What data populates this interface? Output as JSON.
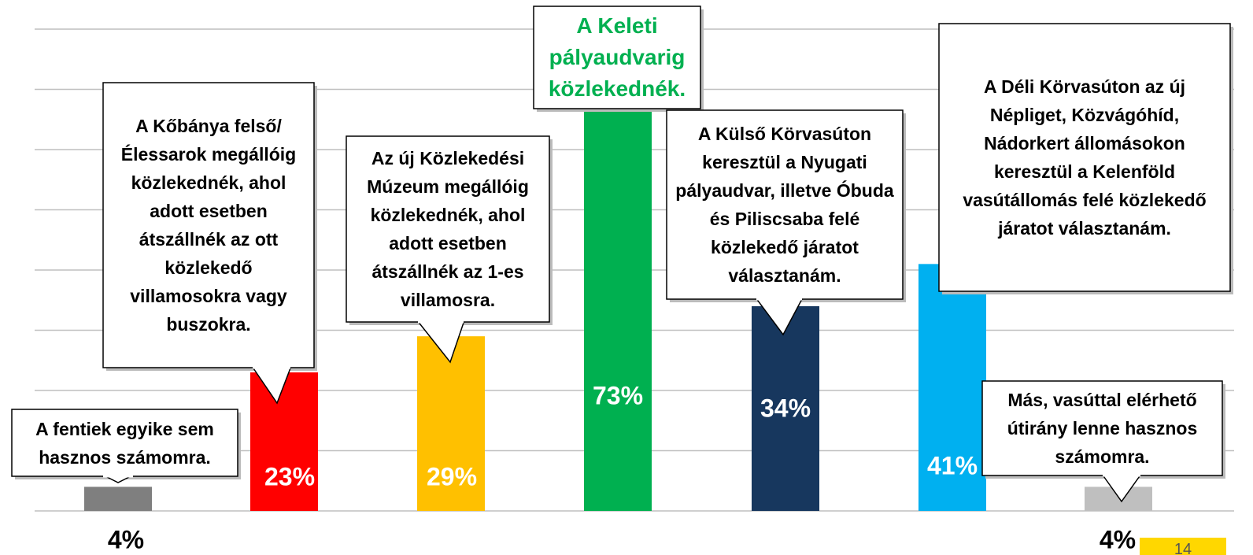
{
  "chart_data": {
    "type": "bar",
    "categories": [
      "A fentiek egyike sem hasznos számomra.",
      "A Kőbánya felső/Élessarok megállóig közlekednék, ahol adott esetben átszállnék az ott közlekedő villamosokra vagy buszokra.",
      "Az új Közlekedési Múzeum megállóig közlekednék, ahol adott esetben átszállnék az 1-es villamosra.",
      "A Keleti pályaudvarig közlekednék.",
      "A Külső Körvasúton keresztül a Nyugati pályaudvar, illetve Óbuda és Piliscsaba felé közlekedő járatot választanám.",
      "A Déli Körvasúton az új Népliget, Közvágóhíd, Nádorkert állomásokon keresztül a Kelenföld vasútállomás felé közlekedő járatot választanám.",
      "Más, vasúttal elérhető útirány lenne hasznos számomra."
    ],
    "values": [
      4,
      23,
      29,
      73,
      34,
      41,
      4
    ],
    "value_labels": [
      "4%",
      "23%",
      "29%",
      "73%",
      "34%",
      "41%",
      "4%"
    ],
    "colors": [
      "#7f7f7f",
      "#ff0000",
      "#ffc000",
      "#00b050",
      "#17375e",
      "#00b0f0",
      "#bfbfbf"
    ],
    "ylim": [
      0,
      80
    ],
    "yticks": [
      0,
      10,
      20,
      30,
      40,
      50,
      60,
      70,
      80
    ],
    "grid": true
  },
  "page_number": "14"
}
